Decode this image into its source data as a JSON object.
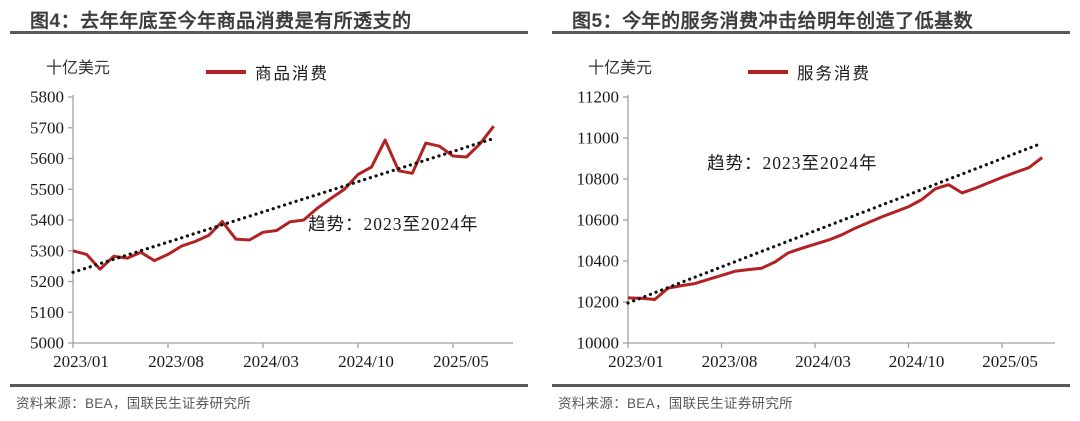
{
  "panels": [
    {
      "title": "图4：去年年底至今年商品消费是有所透支的",
      "unit": "十亿美元",
      "legend": "商品消费",
      "trend_annotation": "趋势：2023至2024年",
      "source": "资料来源：BEA，国联民生证券研究所"
    },
    {
      "title": "图5：今年的服务消费冲击给明年创造了低基数",
      "unit": "十亿美元",
      "legend": "服务消费",
      "trend_annotation": "趋势：2023至2024年",
      "source": "资料来源：BEA，国联民生证券研究所"
    }
  ],
  "colors": {
    "series_red": "#b22222",
    "trend_black": "#111111",
    "axis_gray": "#a0a0a0",
    "rule_gray": "#595959",
    "title_gray": "#3d3d3d",
    "source_gray": "#595959"
  },
  "chart_data": [
    {
      "type": "line",
      "title": "图4：去年年底至今年商品消费是有所透支的",
      "ylabel": "十亿美元",
      "ylim": [
        5000,
        5800
      ],
      "ytick_interval": 100,
      "grid": false,
      "x_months": {
        "start": "2023/01",
        "end": "2025/08",
        "count": 32
      },
      "xtick_labels": [
        "2023/01",
        "2023/08",
        "2024/03",
        "2024/10",
        "2025/05"
      ],
      "xtick_month_indices": [
        0,
        7,
        14,
        21,
        28
      ],
      "series": [
        {
          "name": "商品消费",
          "style": "solid",
          "color": "#b22222",
          "values": [
            5300,
            5288,
            5240,
            5282,
            5276,
            5295,
            5268,
            5288,
            5315,
            5330,
            5350,
            5395,
            5338,
            5335,
            5360,
            5366,
            5394,
            5400,
            5438,
            5470,
            5500,
            5548,
            5572,
            5660,
            5560,
            5552,
            5650,
            5640,
            5608,
            5605,
            5648,
            5705
          ]
        },
        {
          "name": "趋势：2023至2024年",
          "style": "dotted",
          "color": "#111111",
          "trend_start": 5230,
          "trend_end": 5665
        }
      ],
      "annotation": {
        "text": "趋势：2023至2024年",
        "x_month_index": 23.6,
        "y_value": 5368
      }
    },
    {
      "type": "line",
      "title": "图5：今年的服务消费冲击给明年创造了低基数",
      "ylabel": "十亿美元",
      "ylim": [
        10000,
        11200
      ],
      "ytick_interval": 200,
      "grid": false,
      "x_months": {
        "start": "2023/01",
        "end": "2025/08",
        "count": 32
      },
      "xtick_labels": [
        "2023/01",
        "2023/08",
        "2024/03",
        "2024/10",
        "2025/05"
      ],
      "xtick_month_indices": [
        0,
        7,
        14,
        21,
        28
      ],
      "series": [
        {
          "name": "服务消费",
          "style": "solid",
          "color": "#b22222",
          "values": [
            10220,
            10218,
            10212,
            10268,
            10280,
            10290,
            10310,
            10330,
            10350,
            10358,
            10365,
            10395,
            10440,
            10462,
            10482,
            10502,
            10528,
            10560,
            10588,
            10615,
            10640,
            10665,
            10700,
            10752,
            10772,
            10732,
            10755,
            10782,
            10808,
            10832,
            10855,
            10905
          ]
        },
        {
          "name": "趋势：2023至2024年",
          "style": "dotted",
          "color": "#111111",
          "trend_start": 10195,
          "trend_end": 10975
        }
      ],
      "annotation": {
        "text": "趋势：2023至2024年",
        "x_month_index": 12.3,
        "y_value": 10848
      }
    }
  ]
}
